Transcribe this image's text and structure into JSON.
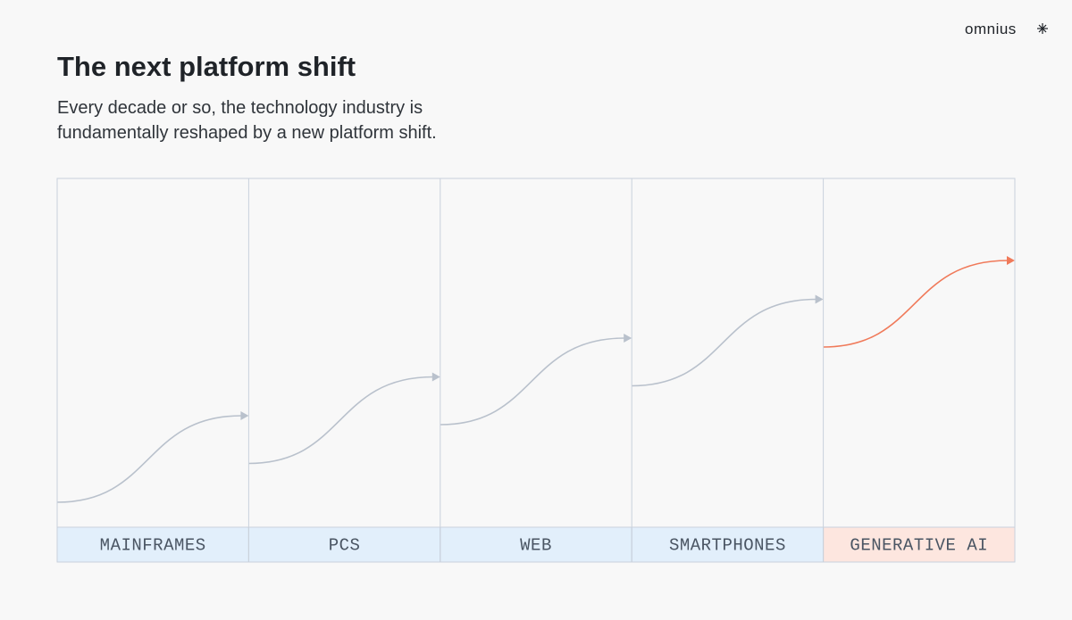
{
  "brand": "omnius",
  "header": {
    "title": "The next platform shift",
    "subtitle_lines": [
      "Every decade or so, the technology industry is",
      "fundamentally reshaped by a new platform shift."
    ]
  },
  "eras": [
    {
      "label": "MAINFRAMES",
      "highlight": false
    },
    {
      "label": "PCS",
      "highlight": false
    },
    {
      "label": "WEB",
      "highlight": false
    },
    {
      "label": "SMARTPHONES",
      "highlight": false
    },
    {
      "label": "GENERATIVE AI",
      "highlight": true
    }
  ]
}
